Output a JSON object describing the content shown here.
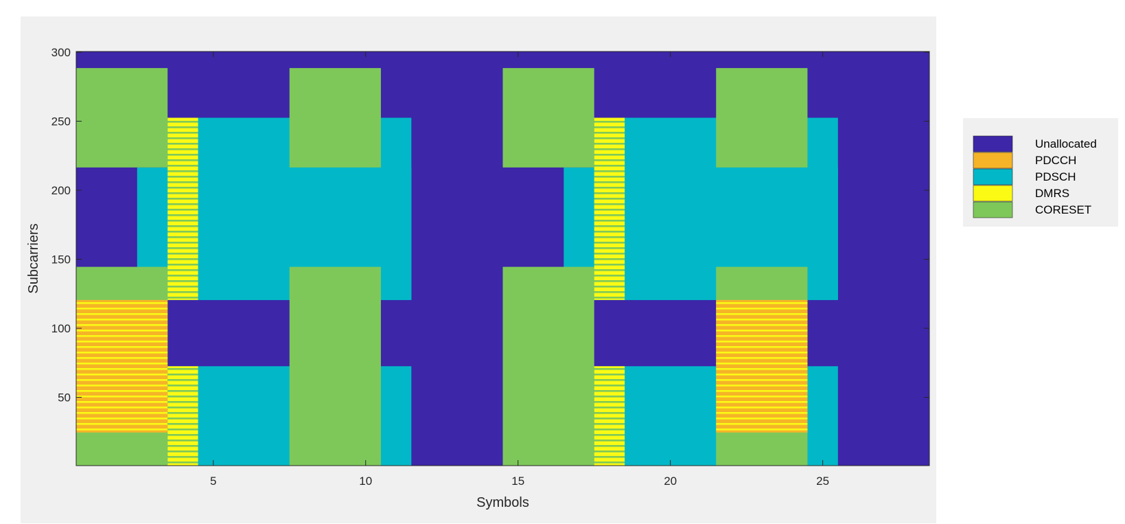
{
  "chart_data": {
    "type": "heatmap",
    "title": "",
    "xlabel": "Symbols",
    "ylabel": "Subcarriers",
    "xlim": [
      0.5,
      28.5
    ],
    "ylim": [
      0.5,
      300.5
    ],
    "xticks": [
      5,
      10,
      15,
      20,
      25
    ],
    "yticks": [
      50,
      100,
      150,
      200,
      250,
      300
    ],
    "legend_position": "right",
    "legend": [
      {
        "key": "unallocated",
        "label": "Unallocated",
        "color": "#3d26a8"
      },
      {
        "key": "pdcch",
        "label": "PDCCH",
        "color": "#f5b428"
      },
      {
        "key": "pdsch",
        "label": "PDSCH",
        "color": "#02b8c8"
      },
      {
        "key": "dmrs",
        "label": "DMRS",
        "color": "#fafa14"
      },
      {
        "key": "coreset",
        "label": "CORESET",
        "color": "#7ec85a"
      }
    ],
    "background": "unallocated",
    "regions": [
      {
        "type": "pdsch",
        "symbols": [
          3,
          11
        ],
        "subcarriers": [
          121,
          216
        ]
      },
      {
        "type": "pdsch",
        "symbols": [
          4,
          11
        ],
        "subcarriers": [
          121,
          252
        ]
      },
      {
        "type": "pdsch",
        "symbols": [
          4,
          11
        ],
        "subcarriers": [
          1,
          72
        ]
      },
      {
        "type": "pdsch",
        "symbols": [
          17,
          25
        ],
        "subcarriers": [
          121,
          216
        ]
      },
      {
        "type": "pdsch",
        "symbols": [
          18,
          25
        ],
        "subcarriers": [
          121,
          252
        ]
      },
      {
        "type": "pdsch",
        "symbols": [
          18,
          25
        ],
        "subcarriers": [
          1,
          72
        ]
      },
      {
        "type": "coreset",
        "symbols": [
          1,
          3
        ],
        "subcarriers": [
          217,
          288
        ]
      },
      {
        "type": "coreset",
        "symbols": [
          1,
          3
        ],
        "subcarriers": [
          1,
          144
        ]
      },
      {
        "type": "coreset",
        "symbols": [
          8,
          10
        ],
        "subcarriers": [
          217,
          288
        ]
      },
      {
        "type": "coreset",
        "symbols": [
          8,
          10
        ],
        "subcarriers": [
          1,
          144
        ]
      },
      {
        "type": "coreset",
        "symbols": [
          15,
          17
        ],
        "subcarriers": [
          217,
          288
        ]
      },
      {
        "type": "coreset",
        "symbols": [
          15,
          17
        ],
        "subcarriers": [
          1,
          144
        ]
      },
      {
        "type": "coreset",
        "symbols": [
          22,
          24
        ],
        "subcarriers": [
          217,
          288
        ]
      },
      {
        "type": "coreset",
        "symbols": [
          22,
          24
        ],
        "subcarriers": [
          1,
          144
        ]
      },
      {
        "type": "pdcch",
        "symbols": [
          1,
          3
        ],
        "subcarriers": [
          25,
          120
        ],
        "pattern": "stripes",
        "stripe_with": "dmrs"
      },
      {
        "type": "pdcch",
        "symbols": [
          22,
          24
        ],
        "subcarriers": [
          25,
          120
        ],
        "pattern": "stripes",
        "stripe_with": "dmrs"
      },
      {
        "type": "dmrs",
        "symbols": [
          4,
          4
        ],
        "subcarriers": [
          121,
          252
        ],
        "pattern": "stripes",
        "stripe_with": "coreset"
      },
      {
        "type": "dmrs",
        "symbols": [
          4,
          4
        ],
        "subcarriers": [
          1,
          72
        ],
        "pattern": "stripes",
        "stripe_with": "coreset"
      },
      {
        "type": "dmrs",
        "symbols": [
          18,
          18
        ],
        "subcarriers": [
          121,
          252
        ],
        "pattern": "stripes",
        "stripe_with": "coreset"
      },
      {
        "type": "dmrs",
        "symbols": [
          18,
          18
        ],
        "subcarriers": [
          1,
          72
        ],
        "pattern": "stripes",
        "stripe_with": "coreset"
      }
    ]
  }
}
